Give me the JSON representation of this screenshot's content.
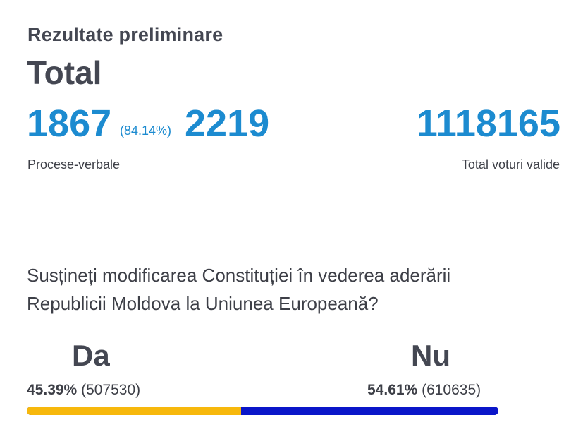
{
  "header": {
    "subtitle": "Rezultate preliminare",
    "title": "Total"
  },
  "protocols": {
    "counted": "1867",
    "percent": "(84.14%)",
    "total": "2219",
    "caption": "Procese-verbale"
  },
  "valid_votes": {
    "total": "1118165",
    "caption": "Total voturi valide"
  },
  "question": {
    "text": "Susțineți modificarea Constituției în vederea aderării Republicii Moldova la Uniunea Europeană?"
  },
  "results": {
    "da": {
      "label": "Da",
      "percent": "45.39%",
      "votes": "(507530)",
      "share": 0.4539,
      "color": "#f7b80c"
    },
    "nu": {
      "label": "Nu",
      "percent": "54.61%",
      "votes": "(610635)",
      "share": 0.5461,
      "color": "#0a16c9"
    }
  }
}
